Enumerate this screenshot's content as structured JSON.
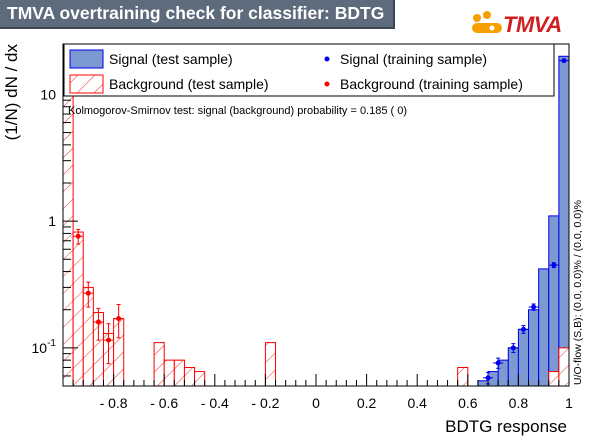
{
  "title": "TMVA overtraining check for classifier: BDTG",
  "logo_text": "TMVA",
  "colors": {
    "title_bg": "#5d6b7d",
    "signal_fill": "#7d99d1",
    "signal_line": "#0000ee",
    "background_line": "#ff0000",
    "logo_dot_orange": "#f5a000",
    "logo_text": "#cf1f1f"
  },
  "legend": {
    "signal_test": "Signal (test sample)",
    "background_test": "Background (test sample)",
    "signal_train": "Signal (training sample)",
    "background_train": "Background (training sample)"
  },
  "ks_text": "Kolmogorov-Smirnov test: signal (background) probability = 0.185 (    0)",
  "overflow_text": "U/O-flow (S,B): (0.0, 0.0)% / (0.0, 0.0)%",
  "chart_data": {
    "type": "histogram",
    "xlabel": "BDTG response",
    "ylabel": "(1/N) dN / dx",
    "xlim": [
      -1,
      1
    ],
    "ylim": [
      0.05,
      25
    ],
    "yscale": "log",
    "x_ticks": [
      "- 0.8",
      "- 0.6",
      "- 0.4",
      "- 0.2",
      "0",
      "0.2",
      "0.4",
      "0.6",
      "0.8",
      "1"
    ],
    "x_tick_values": [
      -0.8,
      -0.6,
      -0.4,
      -0.2,
      0,
      0.2,
      0.4,
      0.6,
      0.8,
      1
    ],
    "y_ticks": [
      {
        "value": 0.1,
        "base": "10",
        "exp": "-1"
      },
      {
        "value": 1,
        "base": "1",
        "exp": ""
      },
      {
        "value": 10,
        "base": "10",
        "exp": ""
      }
    ],
    "bin_edges_start": -1,
    "bin_width": 0.04,
    "signal_test": [
      0,
      0,
      0,
      0,
      0,
      0,
      0,
      0,
      0,
      0,
      0,
      0,
      0,
      0,
      0,
      0,
      0,
      0,
      0,
      0,
      0,
      0,
      0,
      0,
      0,
      0,
      0,
      0,
      0,
      0,
      0,
      0,
      0,
      0,
      0,
      0,
      0,
      0,
      0,
      0,
      0,
      0.055,
      0.065,
      0.08,
      0.1,
      0.14,
      0.2,
      0.42,
      1.1,
      20
    ],
    "background_test": [
      20,
      0.82,
      0.3,
      0.19,
      0.13,
      0.17,
      0,
      0,
      0,
      0.11,
      0.08,
      0.08,
      0.07,
      0.065,
      0,
      0,
      0,
      0,
      0,
      0,
      0.11,
      0,
      0,
      0,
      0,
      0,
      0,
      0,
      0,
      0,
      0,
      0,
      0,
      0,
      0,
      0,
      0,
      0,
      0,
      0.07,
      0,
      0,
      0,
      0,
      0,
      0,
      0,
      0,
      0.065,
      0.1
    ],
    "signal_train": [
      {
        "x": 0.68,
        "y": 0.058,
        "err": 0.006
      },
      {
        "x": 0.72,
        "y": 0.076,
        "err": 0.007
      },
      {
        "x": 0.78,
        "y": 0.1,
        "err": 0.008
      },
      {
        "x": 0.82,
        "y": 0.14,
        "err": 0.01
      },
      {
        "x": 0.86,
        "y": 0.21,
        "err": 0.012
      },
      {
        "x": 0.94,
        "y": 0.45,
        "err": 0.02
      },
      {
        "x": 0.98,
        "y": 18.5,
        "err": 0.3
      }
    ],
    "background_train": [
      {
        "x": -0.98,
        "y": 18.5,
        "err": 1.5
      },
      {
        "x": -0.94,
        "y": 0.76,
        "err": 0.1
      },
      {
        "x": -0.9,
        "y": 0.27,
        "err": 0.06
      },
      {
        "x": -0.86,
        "y": 0.16,
        "err": 0.045
      },
      {
        "x": -0.82,
        "y": 0.115,
        "err": 0.04
      },
      {
        "x": -0.78,
        "y": 0.17,
        "err": 0.05
      }
    ]
  }
}
